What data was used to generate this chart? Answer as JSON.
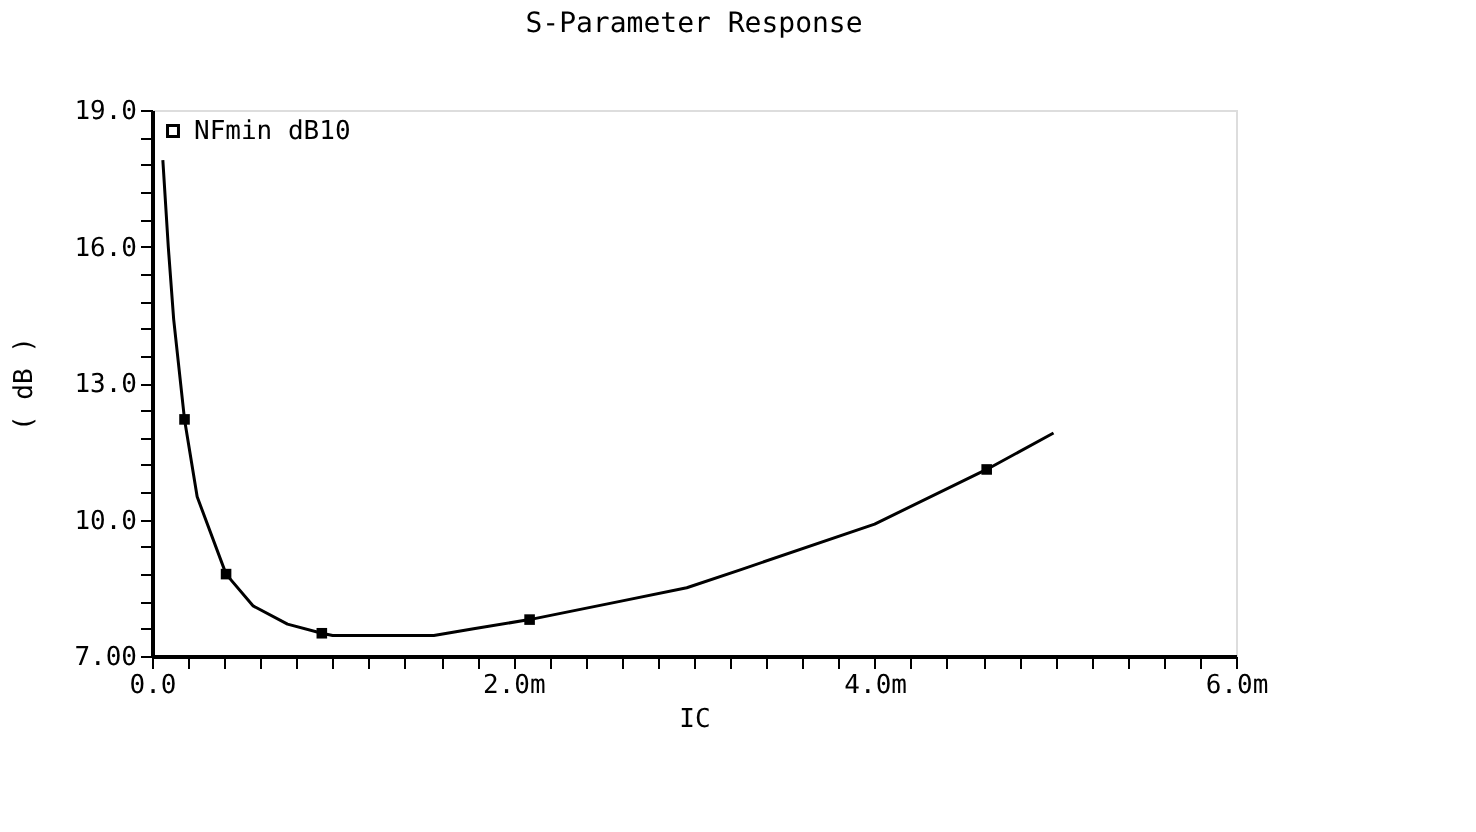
{
  "chart_data": {
    "type": "line",
    "title": "S-Parameter Response",
    "xlabel": "IC",
    "ylabel": "( dB )",
    "xlim": [
      0,
      6
    ],
    "ylim": [
      7,
      19
    ],
    "xticks": [
      {
        "value": 0,
        "label": "0.0"
      },
      {
        "value": 0.2,
        "label": null
      },
      {
        "value": 0.4,
        "label": null
      },
      {
        "value": 0.6,
        "label": null
      },
      {
        "value": 0.8,
        "label": null
      },
      {
        "value": 1,
        "label": null
      },
      {
        "value": 1.2,
        "label": null
      },
      {
        "value": 1.4,
        "label": null
      },
      {
        "value": 1.6,
        "label": null
      },
      {
        "value": 1.8,
        "label": null
      },
      {
        "value": 2,
        "label": "2.0m"
      },
      {
        "value": 2.2,
        "label": null
      },
      {
        "value": 2.4,
        "label": null
      },
      {
        "value": 2.6,
        "label": null
      },
      {
        "value": 2.8,
        "label": null
      },
      {
        "value": 3,
        "label": null
      },
      {
        "value": 3.2,
        "label": null
      },
      {
        "value": 3.4,
        "label": null
      },
      {
        "value": 3.6,
        "label": null
      },
      {
        "value": 3.8,
        "label": null
      },
      {
        "value": 4,
        "label": "4.0m"
      },
      {
        "value": 4.2,
        "label": null
      },
      {
        "value": 4.4,
        "label": null
      },
      {
        "value": 4.6,
        "label": null
      },
      {
        "value": 4.8,
        "label": null
      },
      {
        "value": 5,
        "label": null
      },
      {
        "value": 5.2,
        "label": null
      },
      {
        "value": 5.4,
        "label": null
      },
      {
        "value": 5.6,
        "label": null
      },
      {
        "value": 5.8,
        "label": null
      },
      {
        "value": 6,
        "label": "6.0m"
      }
    ],
    "yticks": [
      {
        "value": 7,
        "label": "7.00"
      },
      {
        "value": 7.6,
        "label": null
      },
      {
        "value": 8.2,
        "label": null
      },
      {
        "value": 8.8,
        "label": null
      },
      {
        "value": 9.4,
        "label": null
      },
      {
        "value": 10,
        "label": "10.0"
      },
      {
        "value": 10.6,
        "label": null
      },
      {
        "value": 11.2,
        "label": null
      },
      {
        "value": 11.8,
        "label": null
      },
      {
        "value": 12.4,
        "label": null
      },
      {
        "value": 13,
        "label": "13.0"
      },
      {
        "value": 13.6,
        "label": null
      },
      {
        "value": 14.2,
        "label": null
      },
      {
        "value": 14.8,
        "label": null
      },
      {
        "value": 15.4,
        "label": null
      },
      {
        "value": 16,
        "label": "16.0"
      },
      {
        "value": 16.6,
        "label": null
      },
      {
        "value": 17.2,
        "label": null
      },
      {
        "value": 17.8,
        "label": null
      },
      {
        "value": 18.4,
        "label": null
      },
      {
        "value": 19,
        "label": "19.0"
      }
    ],
    "grid": false,
    "legend": "top left",
    "series": [
      {
        "name": "NFmin dB10",
        "type": "line",
        "color": "#000000",
        "marker": "none",
        "line_style": "solid",
        "x": [
          0.06,
          0.09,
          0.12,
          0.18,
          0.25,
          0.41,
          0.56,
          0.75,
          0.94,
          1.0,
          1.56,
          1.78,
          2.09,
          2.59,
          2.96,
          3.26,
          4.0,
          4.62,
          4.99
        ],
        "values": [
          17.9,
          16.0,
          14.4,
          12.2,
          10.5,
          8.8,
          8.1,
          7.7,
          7.5,
          7.45,
          7.45,
          7.6,
          7.8,
          8.2,
          8.5,
          8.9,
          9.9,
          11.1,
          11.9
        ]
      },
      {
        "type": "scatter",
        "color": "#000000",
        "marker": "square",
        "x": [
          0.18,
          0.41,
          0.94,
          2.09,
          4.62
        ],
        "values": [
          12.2,
          8.8,
          7.5,
          7.8,
          11.1
        ]
      }
    ]
  }
}
